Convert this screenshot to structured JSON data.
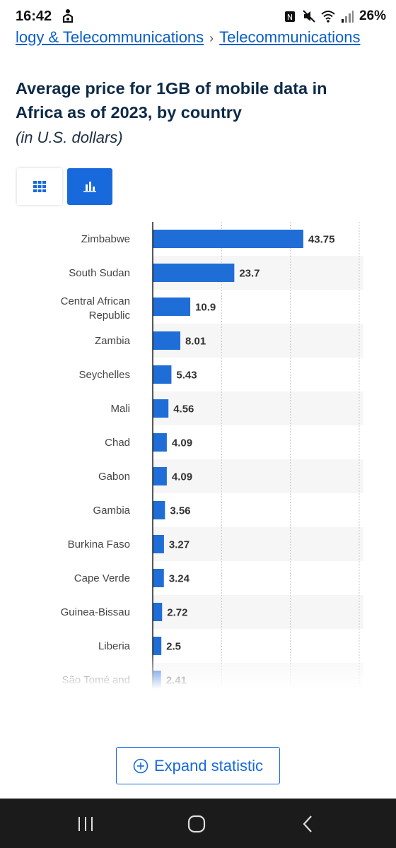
{
  "status_bar": {
    "time": "16:42",
    "battery": "26%",
    "icons": [
      "notification-icon",
      "nfc-icon",
      "mute-icon",
      "wifi-icon",
      "signal-icon"
    ]
  },
  "breadcrumb": {
    "items": [
      "logy & Telecommunications",
      "Telecommunications"
    ],
    "separator": "›"
  },
  "header": {
    "title": "Average price for 1GB of mobile data in Africa as of 2023, by country",
    "subtitle": "(in U.S. dollars)"
  },
  "view_toggle": {
    "options": [
      "table-view",
      "chart-view"
    ],
    "active": "chart-view"
  },
  "colors": {
    "accent": "#1769dc",
    "bar": "#1f6ed8",
    "title": "#0d2a48",
    "link": "#0a5ec7"
  },
  "chart_data": {
    "type": "bar",
    "orientation": "horizontal",
    "categories": [
      "Zimbabwe",
      "South Sudan",
      "Central African Republic",
      "Zambia",
      "Seychelles",
      "Mali",
      "Chad",
      "Gabon",
      "Gambia",
      "Burkina Faso",
      "Cape Verde",
      "Guinea-Bissau",
      "Liberia",
      "São Tomé and"
    ],
    "values": [
      43.75,
      23.7,
      10.9,
      8.01,
      5.43,
      4.56,
      4.09,
      4.09,
      3.56,
      3.27,
      3.24,
      2.72,
      2.5,
      2.41
    ],
    "value_labels": [
      "43.75",
      "23.7",
      "10.9",
      "8.01",
      "5.43",
      "4.56",
      "4.09",
      "4.09",
      "3.56",
      "3.27",
      "3.24",
      "2.72",
      "2.5",
      "2.41"
    ],
    "xlim": [
      0,
      60
    ],
    "grid": true,
    "legend": "none"
  },
  "expand_button": {
    "label": "Expand statistic"
  },
  "nav_bar": {
    "buttons": [
      "recent-apps",
      "home",
      "back"
    ]
  }
}
